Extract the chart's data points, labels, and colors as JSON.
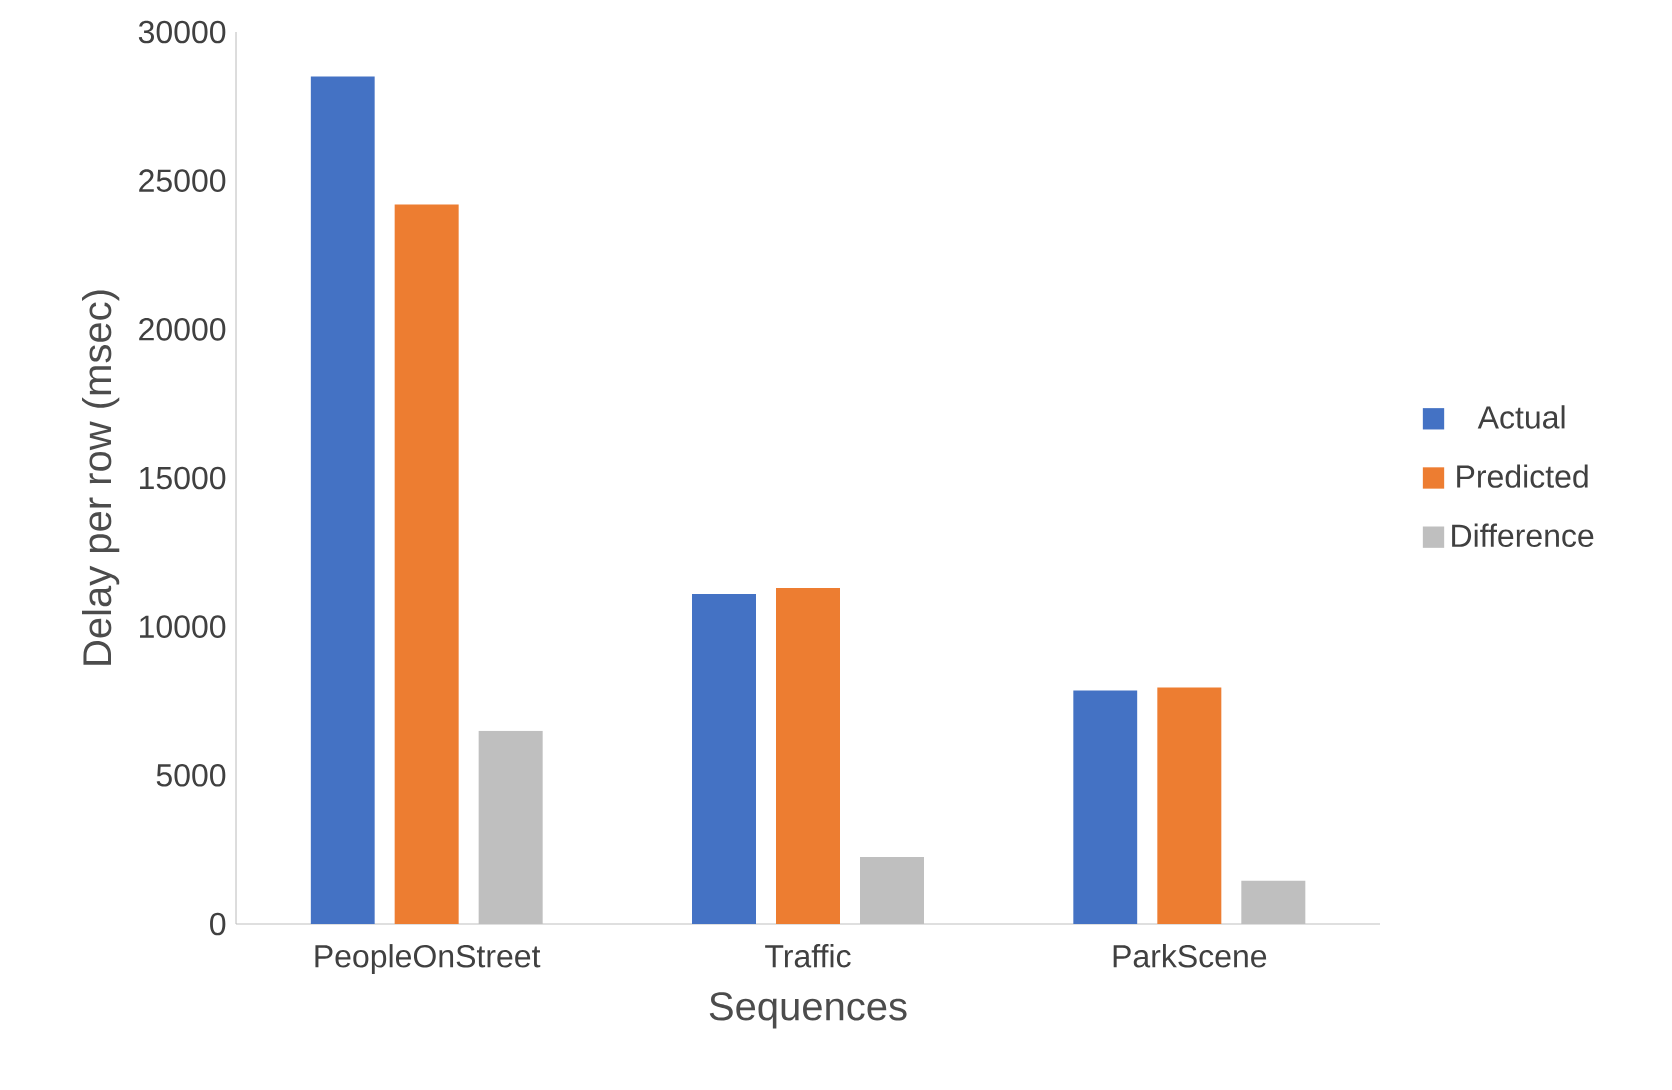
{
  "chart_data": {
    "type": "bar",
    "xlabel": "Sequences",
    "ylabel": "Delay per row (msec)",
    "categories": [
      "PeopleOnStreet",
      "Traffic",
      "ParkScene"
    ],
    "series": [
      {
        "name": "Actual",
        "color": "#4472c4",
        "values": [
          28500,
          11100,
          7850
        ]
      },
      {
        "name": "Predicted",
        "color": "#ed7d31",
        "values": [
          24200,
          11300,
          7950
        ]
      },
      {
        "name": "Difference",
        "color": "#bfbfbf",
        "values": [
          6500,
          2250,
          1450
        ]
      }
    ],
    "ylim": [
      0,
      30000
    ],
    "yticks": [
      0,
      5000,
      10000,
      15000,
      20000,
      25000,
      30000
    ],
    "legend": "right"
  }
}
